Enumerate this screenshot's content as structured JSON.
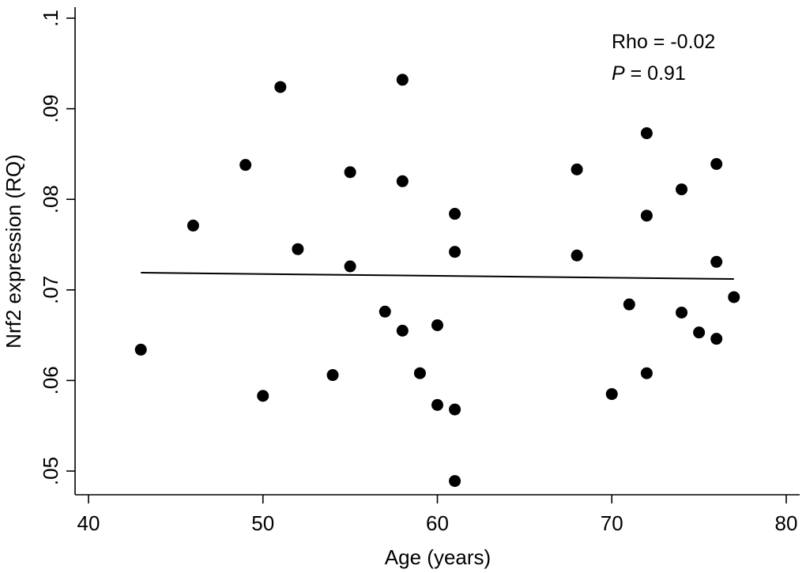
{
  "chart_data": {
    "type": "scatter",
    "xlabel": "Age (years)",
    "ylabel": "Nrf2 expression (RQ)",
    "xlim": [
      40,
      80
    ],
    "ylim": [
      0.047,
      0.1
    ],
    "x_ticks": [
      40,
      50,
      60,
      70,
      80
    ],
    "x_tick_labels": [
      "40",
      "50",
      "60",
      "70",
      "80"
    ],
    "y_ticks": [
      0.05,
      0.06,
      0.07,
      0.08,
      0.09,
      0.1
    ],
    "y_tick_labels": [
      ".05",
      ".06",
      ".07",
      ".08",
      ".09",
      ".1"
    ],
    "grid": false,
    "annotations": {
      "rho_label": "Rho = -0.02",
      "p_symbol": "P",
      "p_value_text": " = 0.91"
    },
    "fit_line": {
      "x": [
        43,
        77
      ],
      "y": [
        0.0719,
        0.0712
      ]
    },
    "points": [
      {
        "x": 43,
        "y": 0.0634
      },
      {
        "x": 46,
        "y": 0.0771
      },
      {
        "x": 49,
        "y": 0.0838
      },
      {
        "x": 50,
        "y": 0.0583
      },
      {
        "x": 51,
        "y": 0.0924
      },
      {
        "x": 52,
        "y": 0.0745
      },
      {
        "x": 54,
        "y": 0.0606
      },
      {
        "x": 55,
        "y": 0.083
      },
      {
        "x": 55,
        "y": 0.0726
      },
      {
        "x": 57,
        "y": 0.0676
      },
      {
        "x": 58,
        "y": 0.0932
      },
      {
        "x": 58,
        "y": 0.082
      },
      {
        "x": 58,
        "y": 0.0655
      },
      {
        "x": 59,
        "y": 0.0608
      },
      {
        "x": 60,
        "y": 0.0661
      },
      {
        "x": 60,
        "y": 0.0573
      },
      {
        "x": 61,
        "y": 0.0784
      },
      {
        "x": 61,
        "y": 0.0742
      },
      {
        "x": 61,
        "y": 0.0568
      },
      {
        "x": 61,
        "y": 0.0489
      },
      {
        "x": 68,
        "y": 0.0833
      },
      {
        "x": 68,
        "y": 0.0738
      },
      {
        "x": 70,
        "y": 0.0585
      },
      {
        "x": 71,
        "y": 0.0684
      },
      {
        "x": 72,
        "y": 0.0873
      },
      {
        "x": 72,
        "y": 0.0782
      },
      {
        "x": 72,
        "y": 0.0608
      },
      {
        "x": 74,
        "y": 0.0811
      },
      {
        "x": 74,
        "y": 0.0675
      },
      {
        "x": 75,
        "y": 0.0653
      },
      {
        "x": 76,
        "y": 0.0839
      },
      {
        "x": 76,
        "y": 0.0731
      },
      {
        "x": 76,
        "y": 0.0646
      },
      {
        "x": 77,
        "y": 0.0692
      }
    ]
  }
}
